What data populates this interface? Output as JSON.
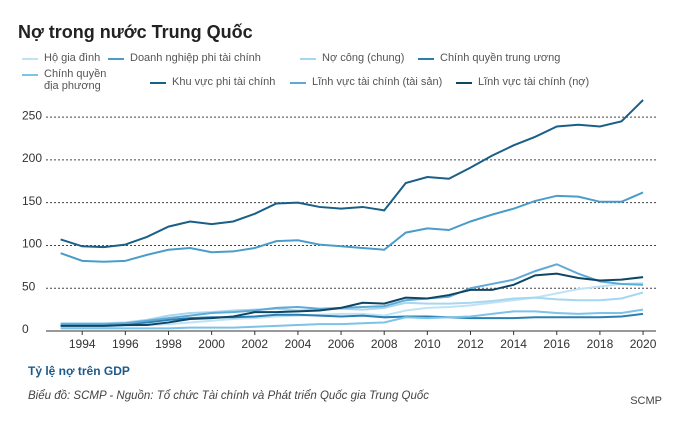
{
  "chart_data": {
    "type": "line",
    "title": "Nợ trong nước Trung Quốc",
    "subtitle": "Tỷ lệ nợ trên GDP",
    "source": "Biểu đồ: SCMP - Nguồn: Tổ chức Tài chính và Phát triển Quốc gia Trung Quốc",
    "credit": "SCMP",
    "x": [
      1993,
      1994,
      1995,
      1996,
      1997,
      1998,
      1999,
      2000,
      2001,
      2002,
      2003,
      2004,
      2005,
      2006,
      2007,
      2008,
      2009,
      2010,
      2011,
      2012,
      2013,
      2014,
      2015,
      2016,
      2017,
      2018,
      2019,
      2020
    ],
    "xlim": [
      1992.6,
      2020.6
    ],
    "xticks": [
      1994,
      1996,
      1998,
      2000,
      2002,
      2004,
      2006,
      2008,
      2010,
      2012,
      2014,
      2016,
      2018,
      2020
    ],
    "ylim": [
      0,
      270
    ],
    "yticks": [
      0,
      50,
      100,
      150,
      200,
      250
    ],
    "grid": true,
    "series": [
      {
        "name": "Hộ gia đình",
        "color": "#bfe3f5",
        "values": [
          5,
          5,
          5,
          6,
          7,
          8,
          10,
          12,
          14,
          15,
          17,
          18,
          19,
          20,
          20,
          18,
          24,
          27,
          28,
          30,
          33,
          36,
          39,
          44,
          49,
          52,
          55,
          56
        ]
      },
      {
        "name": "Doanh nghiệp phi tài chính",
        "color": "#4a9cc9",
        "values": [
          91,
          82,
          81,
          82,
          89,
          95,
          97,
          92,
          93,
          97,
          105,
          106,
          101,
          99,
          97,
          95,
          115,
          120,
          118,
          128,
          136,
          143,
          152,
          158,
          157,
          151,
          151,
          162
        ]
      },
      {
        "name": "Nợ công (chung)",
        "color": "#a6d7f0",
        "values": [
          9,
          9,
          9,
          10,
          13,
          18,
          21,
          22,
          24,
          25,
          26,
          24,
          25,
          26,
          25,
          27,
          33,
          32,
          32,
          33,
          35,
          38,
          39,
          37,
          36,
          36,
          38,
          45
        ]
      },
      {
        "name": "Chính quyền trung ương",
        "color": "#2b7fb0",
        "values": [
          7,
          7,
          7,
          8,
          10,
          13,
          15,
          16,
          16,
          17,
          19,
          19,
          18,
          17,
          18,
          16,
          17,
          17,
          16,
          15,
          15,
          15,
          16,
          16,
          16,
          16,
          17,
          20
        ]
      },
      {
        "name": "Chính quyền địa phương",
        "color": "#7cc3e8",
        "values": [
          3,
          3,
          3,
          3,
          3,
          3,
          4,
          4,
          4,
          5,
          6,
          7,
          8,
          8,
          9,
          10,
          16,
          15,
          16,
          17,
          20,
          23,
          23,
          21,
          20,
          21,
          21,
          25
        ]
      },
      {
        "name": "Khu vực phi tài chính",
        "color": "#1a5f88",
        "values": [
          107,
          99,
          98,
          101,
          110,
          122,
          128,
          125,
          128,
          137,
          149,
          150,
          145,
          143,
          145,
          141,
          173,
          180,
          178,
          191,
          205,
          217,
          227,
          239,
          241,
          239,
          245,
          270
        ]
      },
      {
        "name": "Lĩnh vực tài chính (tài sản)",
        "color": "#5fa9d6",
        "values": [
          8,
          8,
          8,
          9,
          12,
          15,
          18,
          21,
          22,
          24,
          27,
          28,
          26,
          27,
          28,
          29,
          36,
          38,
          40,
          50,
          55,
          60,
          70,
          78,
          67,
          58,
          55,
          54
        ]
      },
      {
        "name": "Lĩnh vực tài chính (nợ)",
        "color": "#0e4766",
        "values": [
          6,
          6,
          6,
          7,
          7,
          10,
          14,
          15,
          17,
          22,
          22,
          23,
          24,
          27,
          33,
          32,
          39,
          38,
          42,
          48,
          48,
          54,
          65,
          67,
          62,
          59,
          60,
          63
        ]
      }
    ]
  }
}
